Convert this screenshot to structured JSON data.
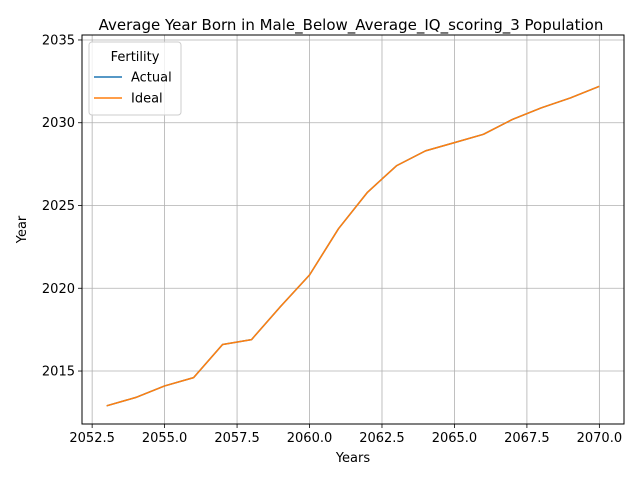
{
  "chart_data": {
    "type": "line",
    "title": "Average Year Born in Male_Below_Average_IQ_scoring_3 Population",
    "xlabel": "Years",
    "ylabel": "Year",
    "xlim": [
      2052.15,
      2070.85
    ],
    "ylim": [
      2011.8,
      2035.3
    ],
    "x_ticks": [
      2052.5,
      2055.0,
      2057.5,
      2060.0,
      2062.5,
      2065.0,
      2067.5,
      2070.0
    ],
    "x_tick_labels": [
      "2052.5",
      "2055.0",
      "2057.5",
      "2060.0",
      "2062.5",
      "2065.0",
      "2067.5",
      "2070.0"
    ],
    "y_ticks": [
      2015,
      2020,
      2025,
      2030,
      2035
    ],
    "y_tick_labels": [
      "2015",
      "2020",
      "2025",
      "2030",
      "2035"
    ],
    "grid": true,
    "legend": {
      "title": "Fertility",
      "placement": "top-left"
    },
    "x": [
      2053,
      2054,
      2055,
      2056,
      2057,
      2058,
      2059,
      2060,
      2061,
      2062,
      2063,
      2064,
      2065,
      2066,
      2067,
      2068,
      2069,
      2070
    ],
    "series": [
      {
        "name": "Actual",
        "color": "#1f77b4",
        "values": [
          2012.9,
          2013.4,
          2014.1,
          2014.6,
          2016.6,
          2016.9,
          2018.9,
          2020.8,
          2023.6,
          2025.8,
          2027.4,
          2028.3,
          2028.8,
          2029.3,
          2030.2,
          2030.9,
          2031.5,
          2032.2
        ]
      },
      {
        "name": "Ideal",
        "color": "#ff7f0e",
        "values": [
          2012.9,
          2013.4,
          2014.1,
          2014.6,
          2016.6,
          2016.9,
          2018.9,
          2020.8,
          2023.6,
          2025.8,
          2027.4,
          2028.3,
          2028.8,
          2029.3,
          2030.2,
          2030.9,
          2031.5,
          2032.2
        ]
      }
    ]
  }
}
